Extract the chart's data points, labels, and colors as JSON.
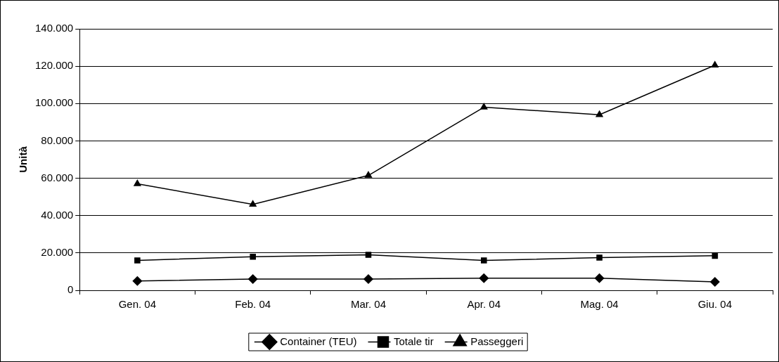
{
  "chart_data": {
    "type": "line",
    "ylabel": "Unità",
    "categories": [
      "Gen. 04",
      "Feb. 04",
      "Mar. 04",
      "Apr. 04",
      "Mag. 04",
      "Giu. 04"
    ],
    "series": [
      {
        "name": "Container (TEU)",
        "color": "#000000",
        "marker": "diamond",
        "values": [
          5000,
          6000,
          6000,
          6500,
          6500,
          4500
        ]
      },
      {
        "name": "Totale tir",
        "color": "#000000",
        "marker": "square",
        "values": [
          16000,
          18000,
          19000,
          16000,
          17500,
          18500
        ]
      },
      {
        "name": "Passeggeri",
        "color": "#000000",
        "marker": "triangle",
        "values": [
          57000,
          46000,
          61500,
          98000,
          94000,
          120500
        ]
      }
    ],
    "ylim": [
      0,
      140000
    ],
    "yticks": [
      {
        "value": 0,
        "label": "0"
      },
      {
        "value": 20000,
        "label": "20.000"
      },
      {
        "value": 40000,
        "label": "40.000"
      },
      {
        "value": 60000,
        "label": "60.000"
      },
      {
        "value": 80000,
        "label": "80.000"
      },
      {
        "value": 100000,
        "label": "100.000"
      },
      {
        "value": 120000,
        "label": "120.000"
      },
      {
        "value": 140000,
        "label": "140.000"
      }
    ],
    "grid": "y",
    "legend": "bottom",
    "line_style": "solid"
  }
}
